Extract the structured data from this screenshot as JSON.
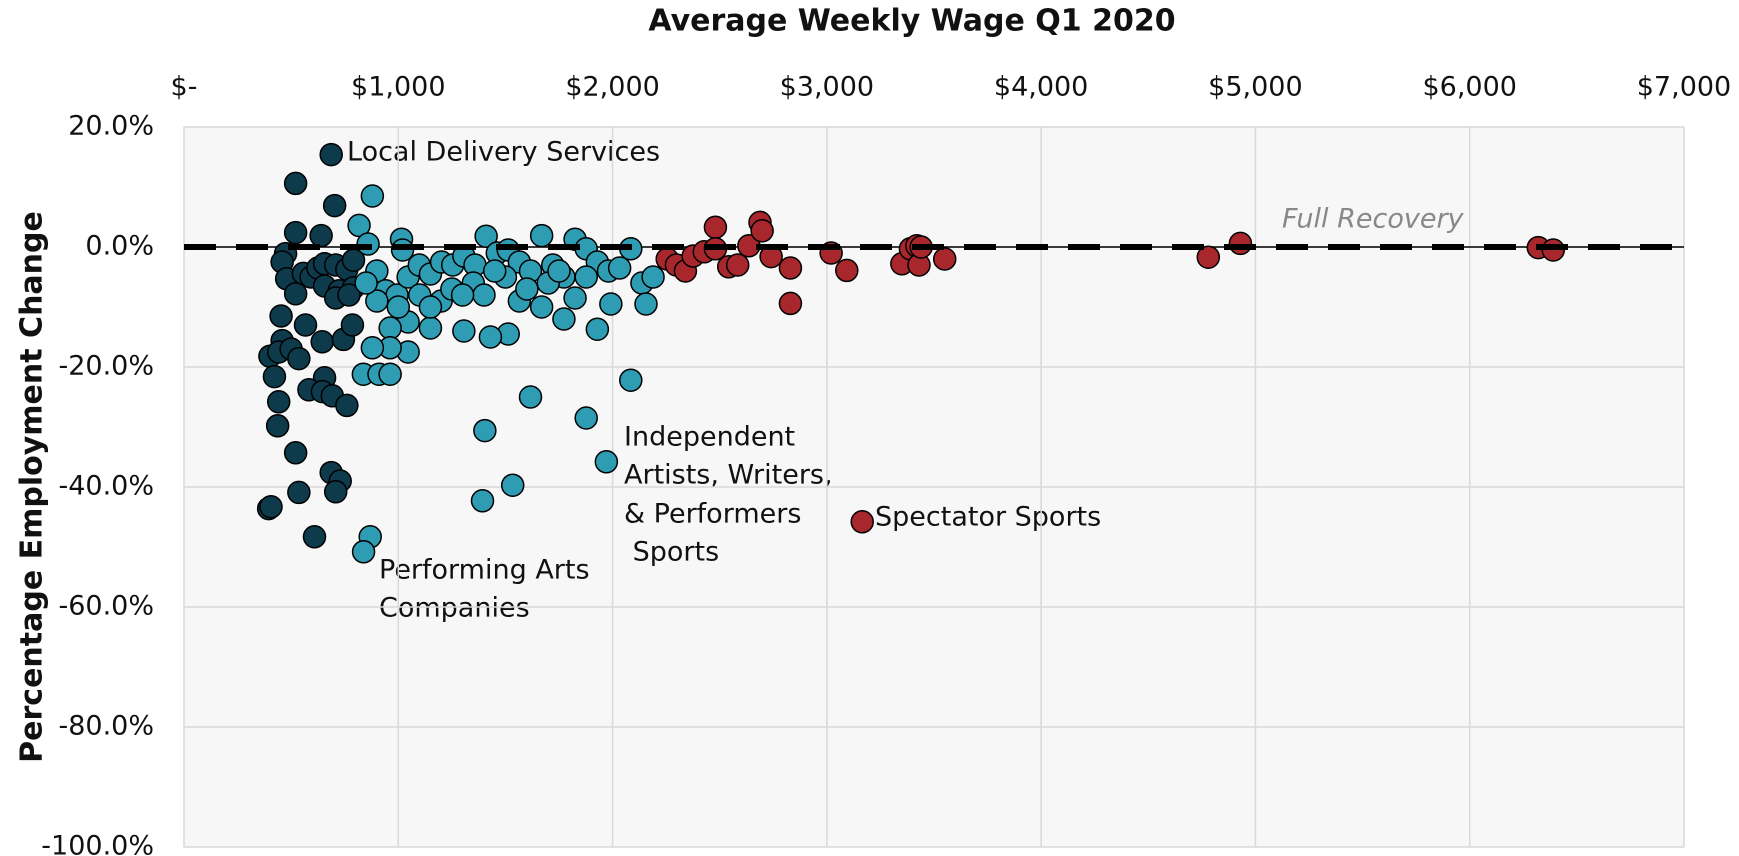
{
  "chart_data": {
    "type": "scatter",
    "title": "Average Weekly Wage Q1 2020",
    "y_label": "Percentage Employment Change",
    "xlim": [
      0,
      7000
    ],
    "xticks": [
      {
        "value": 0,
        "label": "$-"
      },
      {
        "value": 1000,
        "label": "$1,000"
      },
      {
        "value": 2000,
        "label": "$2,000"
      },
      {
        "value": 3000,
        "label": "$3,000"
      },
      {
        "value": 4000,
        "label": "$4,000"
      },
      {
        "value": 5000,
        "label": "$5,000"
      },
      {
        "value": 6000,
        "label": "$6,000"
      },
      {
        "value": 7000,
        "label": "$7,000"
      }
    ],
    "ylim": [
      -100,
      20
    ],
    "yticks": [
      {
        "value": 20,
        "label": "20.0%"
      },
      {
        "value": 0,
        "label": "0.0%"
      },
      {
        "value": -20,
        "label": "-20.0%"
      },
      {
        "value": -40,
        "label": "-40.0%"
      },
      {
        "value": -60,
        "label": "-60.0%"
      },
      {
        "value": -80,
        "label": "-80.0%"
      },
      {
        "value": -100,
        "label": "-100.0%"
      }
    ],
    "grid": true,
    "reference_line": {
      "y": 0,
      "label": "Full Recovery"
    },
    "annotations": [
      [
        "Local Delivery Services"
      ],
      [
        "Performing Arts",
        "Companies"
      ],
      [
        "Independent",
        "Artists, Writers,",
        "& Performers",
        " Sports"
      ],
      [
        "Spectator Sports"
      ]
    ],
    "series": [
      {
        "color": "#0d3b4c",
        "x": [
          687,
          521,
          703,
          521,
          640,
          474,
          458,
          479,
          521,
          557,
          593,
          625,
          656,
          656,
          708,
          724,
          708,
          760,
          791,
          791,
          770,
          453,
          567,
          458,
          645,
          744,
          786,
          401,
          442,
          500,
          536,
          422,
          656,
          583,
          646,
          692,
          760,
          442,
          521,
          437,
          687,
          729,
          708,
          536,
          395,
          406,
          609
        ],
        "values": [
          15.4,
          10.6,
          6.9,
          2.4,
          1.9,
          -1.1,
          -2.5,
          -5.3,
          -7.8,
          -4.4,
          -5,
          -3.5,
          -2.8,
          -6.5,
          -3,
          -7.3,
          -8.5,
          -3.7,
          -2.2,
          -6.8,
          -8,
          -11.5,
          -13,
          -15.6,
          -15.8,
          -15.4,
          -13,
          -18.2,
          -17.5,
          -17,
          -18.6,
          -21.6,
          -21.8,
          -23.8,
          -24.1,
          -24.8,
          -26.4,
          -25.8,
          -34.3,
          -29.8,
          -37.6,
          -39,
          -40.8,
          -40.9,
          -43.6,
          -43.3,
          -48.3
        ]
      },
      {
        "color": "#2e9db3",
        "x": [
          879,
          817,
          859,
          1015,
          1020,
          900,
          941,
          994,
          1046,
          1098,
          1150,
          1202,
          1254,
          1306,
          1358,
          1410,
          1462,
          1513,
          1565,
          1617,
          1669,
          1721,
          1773,
          1825,
          1877,
          1929,
          1981,
          2033,
          2085,
          2137,
          2189,
          2156,
          1992,
          1929,
          1773,
          1877,
          1825,
          1669,
          1565,
          1513,
          1430,
          1306,
          1150,
          1046,
          962,
          1046,
          962,
          879,
          837,
          910,
          962,
          1617,
          2085,
          1404,
          1877,
          1971,
          1534,
          1393,
          869,
          838,
          1200,
          1250,
          1350,
          1400,
          1500,
          1100,
          1000,
          900,
          850,
          1150,
          1300,
          1450,
          1600,
          1700,
          1750
        ],
        "values": [
          8.5,
          3.6,
          0.5,
          1.3,
          -0.5,
          -4,
          -7.3,
          -8,
          -5,
          -3,
          -4.5,
          -2.5,
          -3,
          -1.5,
          -3,
          1.8,
          -1,
          -0.5,
          -2.5,
          -4,
          1.9,
          -3,
          -5,
          1.3,
          -0.3,
          -2.5,
          -4,
          -3.5,
          -0.3,
          -6,
          -5,
          -9.5,
          -9.5,
          -13.7,
          -12,
          -5,
          -8.5,
          -10,
          -9,
          -14.5,
          -15,
          -14,
          -13.5,
          -12.5,
          -13.5,
          -17.5,
          -16.8,
          -16.8,
          -21.2,
          -21.2,
          -21.2,
          -25,
          -22.2,
          -30.6,
          -28.5,
          -35.8,
          -39.7,
          -42.3,
          -48.3,
          -50.8,
          -9,
          -7,
          -6,
          -8,
          -5,
          -8,
          -10,
          -9,
          -6,
          -10,
          -8,
          -4,
          -7,
          -6,
          -4
        ]
      },
      {
        "color": "#a8272d",
        "x": [
          2255,
          2298,
          2340,
          2376,
          2428,
          2480,
          2480,
          2542,
          2584,
          2636,
          2688,
          2698,
          2740,
          2830,
          2830,
          3020,
          3093,
          3350,
          3390,
          3420,
          3430,
          3440,
          3550,
          3165,
          4780,
          4930,
          6320,
          6390
        ],
        "values": [
          -2,
          -3,
          -4,
          -1.5,
          -0.8,
          3.3,
          -0.3,
          -3.3,
          -3,
          0.2,
          4.1,
          2.7,
          -1.6,
          -9.4,
          -3.5,
          -1,
          -3.9,
          -2.8,
          -0.3,
          0.2,
          -3,
          0,
          -2,
          -45.8,
          -1.7,
          0.6,
          -0.1,
          -0.5
        ]
      }
    ]
  }
}
